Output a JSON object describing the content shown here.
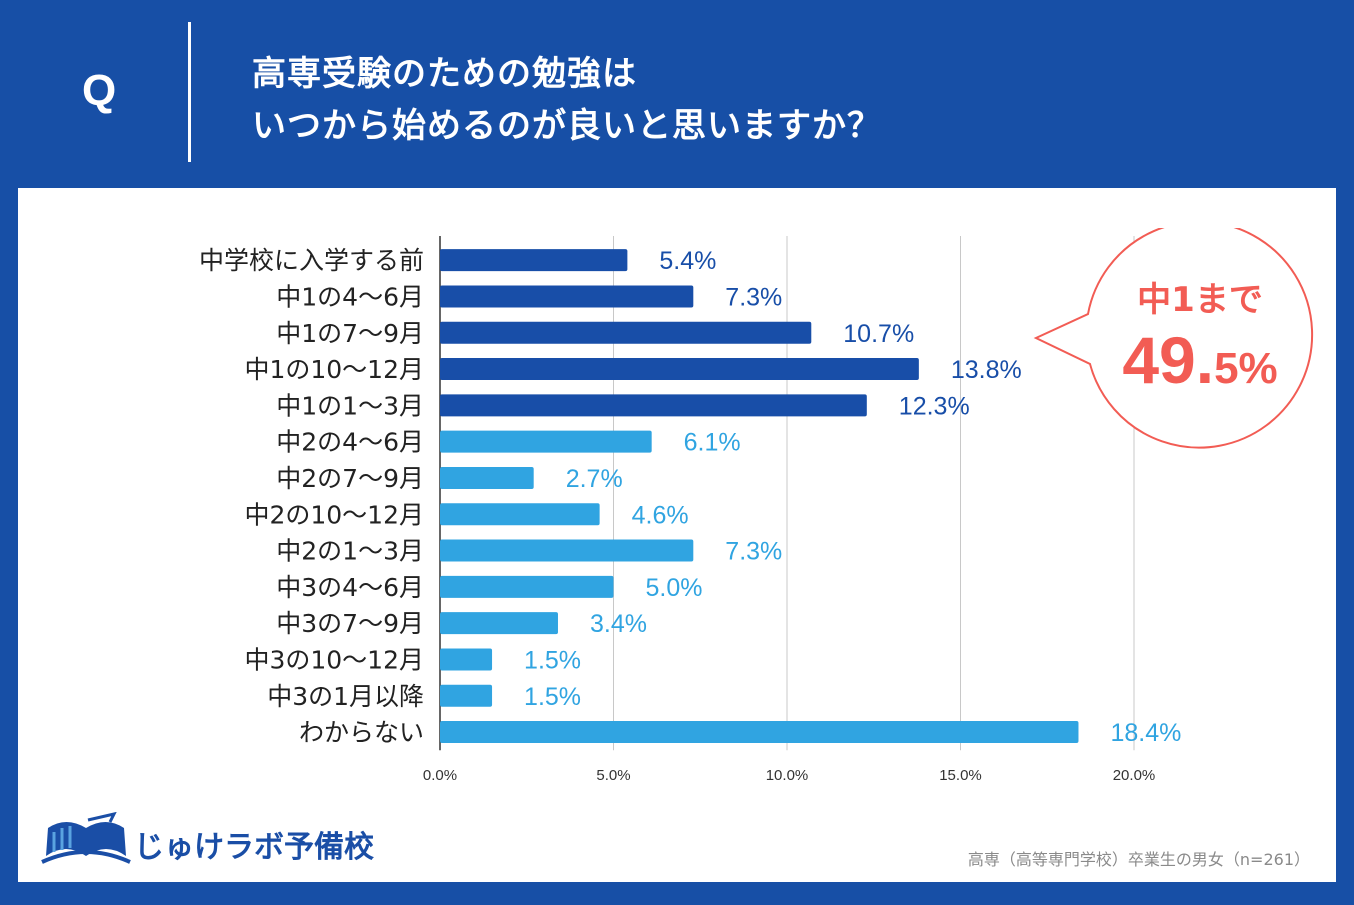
{
  "header": {
    "q_label": "Q",
    "title_line1": "高専受験のための勉強は",
    "title_line2": "いつから始めるのが良いと思いますか？"
  },
  "callout": {
    "label": "中1まで",
    "value_main": "49.",
    "value_decimal": "5",
    "value_unit": "%",
    "color": "#f25c54"
  },
  "logo": {
    "text": "じゅけラボ予備校",
    "icon": "open-book-icon",
    "color": "#1a4ea6"
  },
  "footnote": "高専（高等専門学校）卒業生の男女（n=261）",
  "chart_data": {
    "type": "bar",
    "orientation": "horizontal",
    "title": "高専受験のための勉強はいつから始めるのが良いと思いますか？",
    "categories": [
      "中学校に入学する前",
      "中1の4〜6月",
      "中1の7〜9月",
      "中1の10〜12月",
      "中1の1〜3月",
      "中2の4〜6月",
      "中2の7〜9月",
      "中2の10〜12月",
      "中2の1〜3月",
      "中3の4〜6月",
      "中3の7〜9月",
      "中3の10〜12月",
      "中3の1月以降",
      "わからない"
    ],
    "values": [
      5.4,
      7.3,
      10.7,
      13.8,
      12.3,
      6.1,
      2.7,
      4.6,
      7.3,
      5.0,
      3.4,
      1.5,
      1.5,
      18.4
    ],
    "value_labels": [
      "5.4%",
      "7.3%",
      "10.7%",
      "13.8%",
      "12.3%",
      "6.1%",
      "2.7%",
      "4.6%",
      "7.3%",
      "5.0%",
      "3.4%",
      "1.5%",
      "1.5%",
      "18.4%"
    ],
    "group": [
      "dark",
      "dark",
      "dark",
      "dark",
      "dark",
      "light",
      "light",
      "light",
      "light",
      "light",
      "light",
      "light",
      "light",
      "light"
    ],
    "colors": {
      "dark": "#184ea8",
      "light": "#30a4e1"
    },
    "xlim": [
      0,
      20
    ],
    "xticks": [
      0,
      5,
      10,
      15,
      20
    ],
    "xtick_labels": [
      "0.0%",
      "5.0%",
      "10.0%",
      "15.0%",
      "20.0%"
    ],
    "grid": true,
    "xlabel": "",
    "ylabel": ""
  }
}
